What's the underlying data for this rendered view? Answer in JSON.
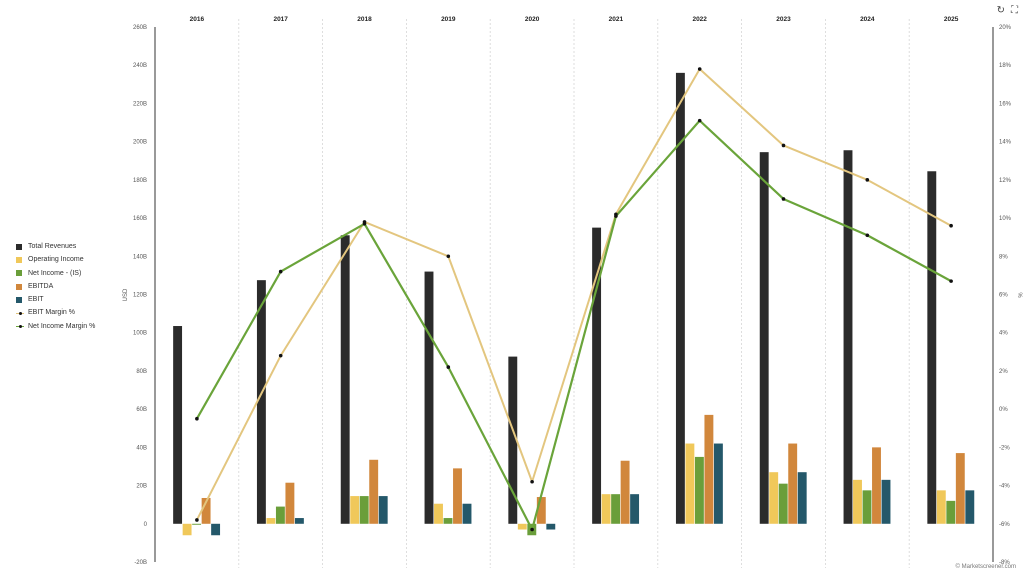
{
  "toolbar": {
    "reset_icon": "refresh-icon",
    "fullscreen_icon": "fullscreen-icon"
  },
  "credit": "© Marketscreener.com",
  "chart_data": {
    "type": "bar",
    "categories": [
      "2016",
      "2017",
      "2018",
      "2019",
      "2020",
      "2021",
      "2022",
      "2023",
      "2024",
      "2025"
    ],
    "ylabel": "USD",
    "y2label": "%",
    "ylim": [
      -20,
      260
    ],
    "y_ticks": [
      "-20B",
      "0",
      "20B",
      "40B",
      "60B",
      "80B",
      "100B",
      "120B",
      "140B",
      "160B",
      "180B",
      "200B",
      "220B",
      "240B",
      "260B"
    ],
    "y2lim": [
      -8,
      20
    ],
    "y2_ticks": [
      "-8%",
      "-6%",
      "-4%",
      "-2%",
      "0%",
      "2%",
      "4%",
      "6%",
      "8%",
      "10%",
      "12%",
      "14%",
      "16%",
      "18%",
      "20%"
    ],
    "legend_position": "left",
    "series": [
      {
        "name": "Total Revenues",
        "type": "bar",
        "color": "#2b2b2b",
        "values": [
          103.5,
          127.5,
          151,
          132,
          87.5,
          155,
          236,
          194.5,
          195.5,
          184.5
        ]
      },
      {
        "name": "Operating Income",
        "type": "bar",
        "color": "#f0c85a",
        "values": [
          -6,
          3,
          14.5,
          10.5,
          -3,
          15.5,
          42,
          27,
          23,
          17.5
        ]
      },
      {
        "name": "Net Income - (IS)",
        "type": "bar",
        "color": "#6a9e3a",
        "values": [
          -0.5,
          9,
          14.5,
          3,
          -6,
          15.5,
          35,
          21,
          17.5,
          12
        ]
      },
      {
        "name": "EBITDA",
        "type": "bar",
        "color": "#d1873c",
        "values": [
          13.5,
          21.5,
          33.5,
          29,
          14,
          33,
          57,
          42,
          40,
          37
        ]
      },
      {
        "name": "EBIT",
        "type": "bar",
        "color": "#24586a",
        "values": [
          -6,
          3,
          14.5,
          10.5,
          -3,
          15.5,
          42,
          27,
          23,
          17.5
        ]
      },
      {
        "name": "EBIT Margin %",
        "type": "line",
        "axis": "right",
        "color": "#e3c67f",
        "values": [
          -5.8,
          2.8,
          9.8,
          8.0,
          -3.8,
          10.2,
          17.8,
          13.8,
          12.0,
          9.6
        ]
      },
      {
        "name": "Net Income Margin %",
        "type": "line",
        "axis": "right",
        "color": "#6aa43a",
        "values": [
          -0.5,
          7.2,
          9.7,
          2.2,
          -6.3,
          10.1,
          15.1,
          11.0,
          9.1,
          6.7
        ]
      }
    ]
  }
}
